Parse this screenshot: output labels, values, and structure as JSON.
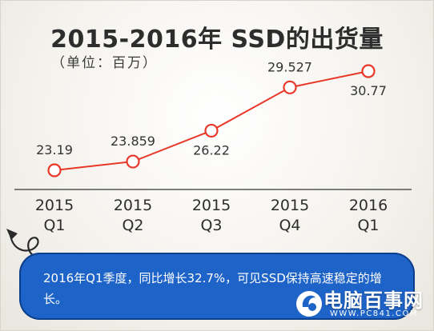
{
  "title": "2015-2016年 SSD的出货量",
  "unit_label": "（单位：百万）",
  "note": "2016年Q1季度，同比增长32.7%，可见SSD保持高速稳定的增长。",
  "logo": {
    "name": "电脑百事网",
    "url": "WWW.PC841.COM"
  },
  "colors": {
    "line": "#e8382a",
    "axis": "#555555",
    "note_bg": "#1e63c7"
  },
  "chart_data": {
    "type": "line",
    "categories": [
      "2015\nQ1",
      "2015\nQ2",
      "2015\nQ3",
      "2015\nQ4",
      "2016\nQ1"
    ],
    "category_lines": [
      [
        "2015",
        "Q1"
      ],
      [
        "2015",
        "Q2"
      ],
      [
        "2015",
        "Q3"
      ],
      [
        "2015",
        "Q4"
      ],
      [
        "2016",
        "Q1"
      ]
    ],
    "values": [
      23.19,
      23.859,
      26.22,
      29.527,
      30.77
    ],
    "value_labels": [
      "23.19",
      "23.859",
      "26.22",
      "29.527",
      "30.77"
    ],
    "title": "2015-2016年 SSD的出货量",
    "xlabel": "",
    "ylabel": "（单位：百万）",
    "grid": false,
    "legend": "none"
  }
}
